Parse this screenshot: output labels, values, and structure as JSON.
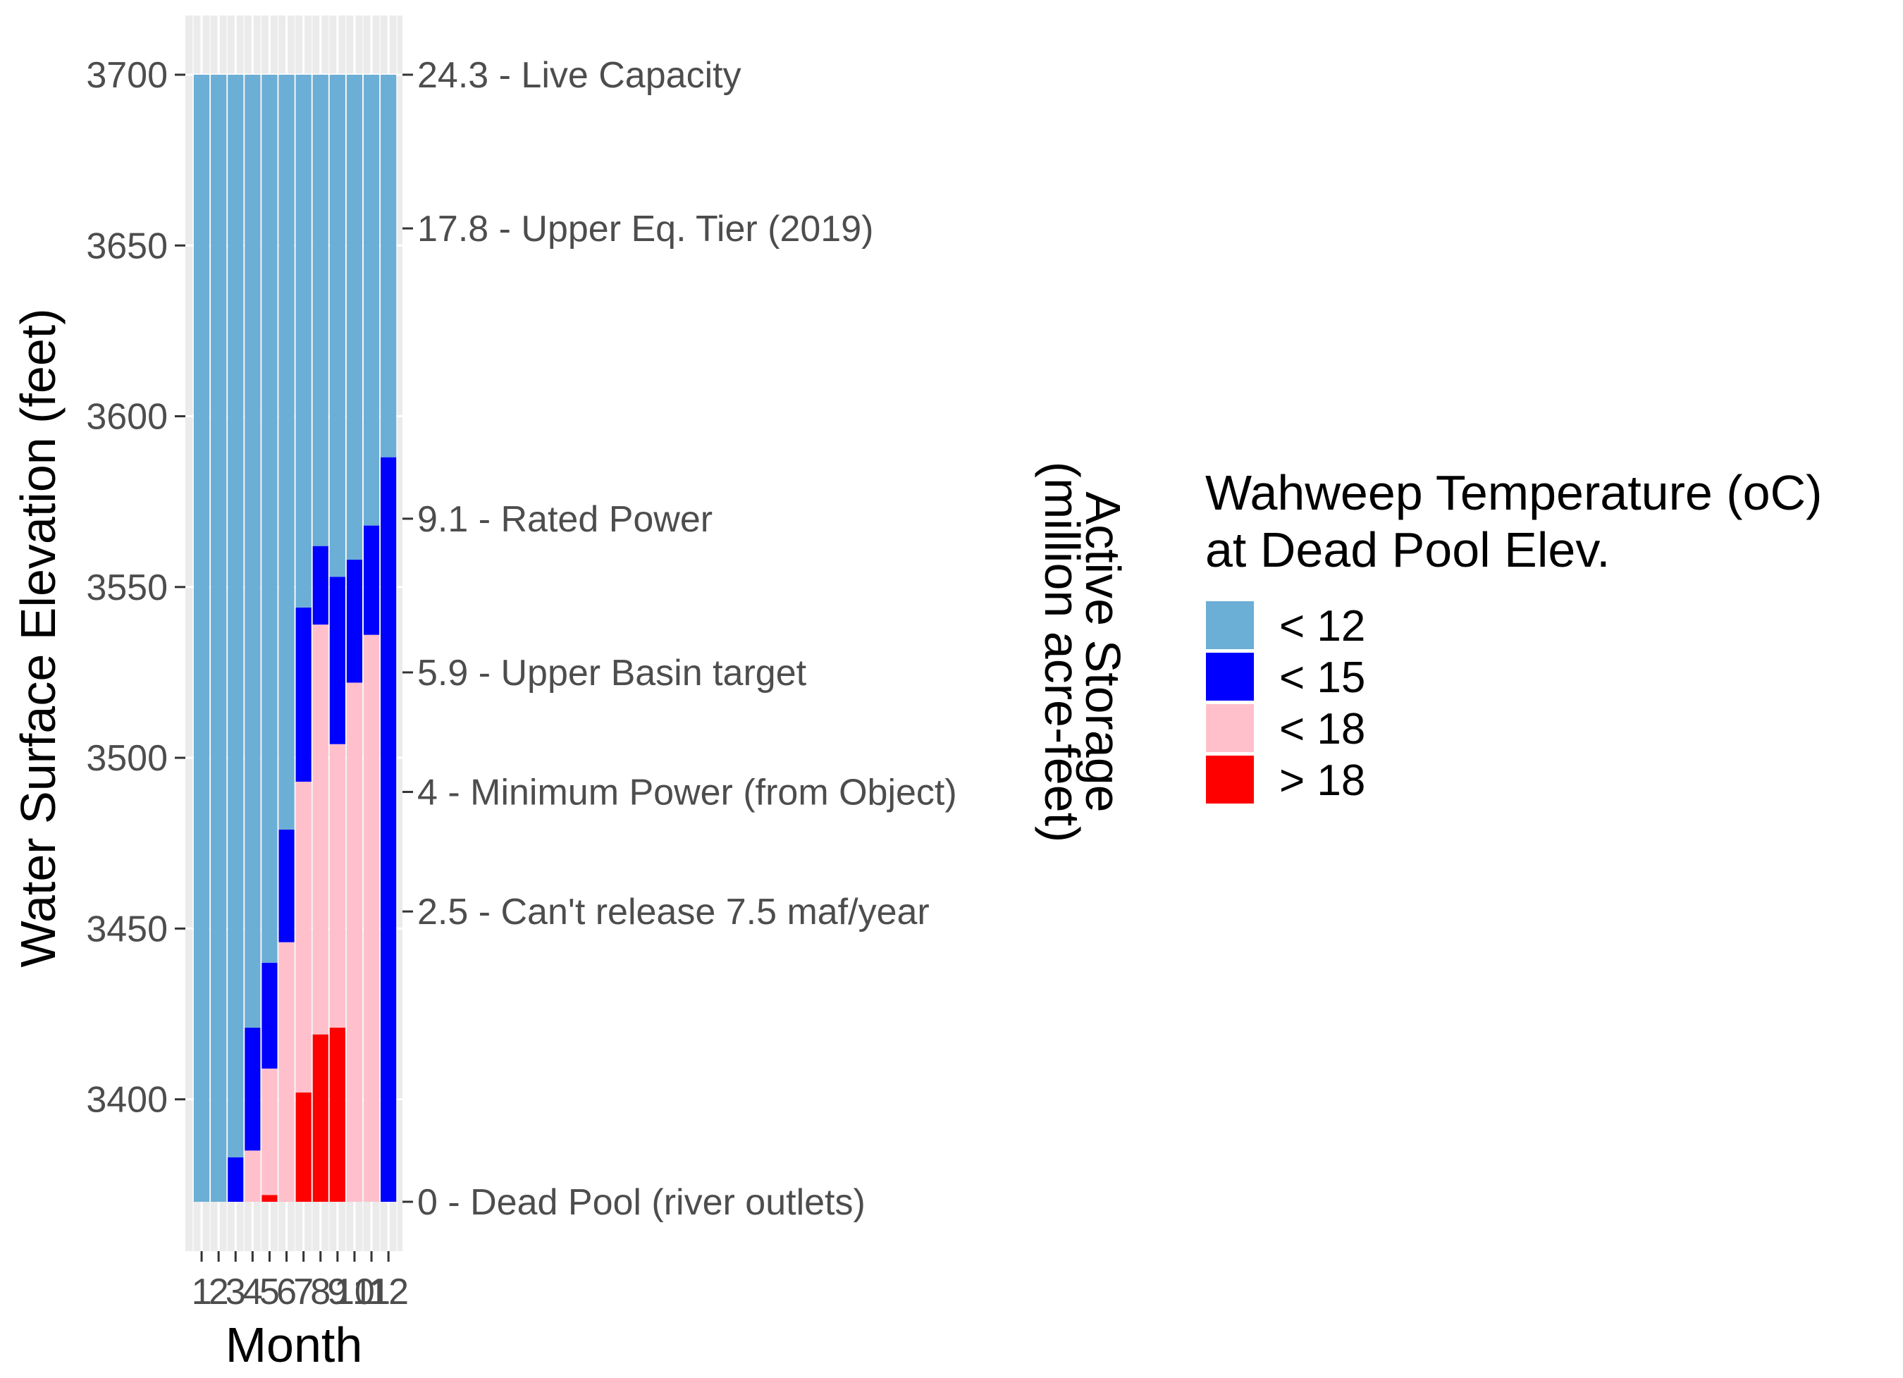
{
  "chart_data": {
    "type": "bar",
    "stacked": true,
    "xlabel": "Month",
    "ylabel": "Water Surface Elevation (feet)",
    "y2label_lines": [
      "Active Storage",
      "(million acre-feet)"
    ],
    "categories": [
      "1",
      "2",
      "3",
      "4",
      "5",
      "6",
      "7",
      "8",
      "9",
      "10",
      "11",
      "12"
    ],
    "ylim": [
      3370,
      3700
    ],
    "y_ticks": [
      3400,
      3450,
      3500,
      3550,
      3600,
      3650,
      3700
    ],
    "secondary_axis_ticks": [
      {
        "elevation": 3700,
        "label": "24.3 - Live Capacity"
      },
      {
        "elevation": 3655,
        "label": "17.8 - Upper Eq. Tier (2019)"
      },
      {
        "elevation": 3570,
        "label": "9.1 - Rated Power"
      },
      {
        "elevation": 3525,
        "label": "5.9 - Upper Basin target"
      },
      {
        "elevation": 3490,
        "label": "4 - Minimum Power (from Object)"
      },
      {
        "elevation": 3455,
        "label": "2.5 - Can't release 7.5 maf/year"
      },
      {
        "elevation": 3370,
        "label": "0 - Dead Pool (river outlets)"
      }
    ],
    "legend": {
      "title_lines": [
        "Wahweep Temperature (oC)",
        "at Dead Pool Elev."
      ],
      "position": "right",
      "entries": [
        {
          "label": "< 12",
          "color": "#6baed6"
        },
        {
          "label": "< 15",
          "color": "#0000ff"
        },
        {
          "label": "< 18",
          "color": "#ffc0cb"
        },
        {
          "label": "> 18",
          "color": "#ff0000"
        }
      ]
    },
    "colors": {
      "lt12": "#6baed6",
      "lt15": "#0000ff",
      "lt18": "#ffc0cb",
      "gt18": "#ff0000"
    },
    "monthly_thresholds": [
      {
        "month": "1",
        "gt18_below": null,
        "lt18_below": null,
        "lt15_below": null
      },
      {
        "month": "2",
        "gt18_below": null,
        "lt18_below": null,
        "lt15_below": null
      },
      {
        "month": "3",
        "gt18_below": null,
        "lt18_below": null,
        "lt15_below": 3383
      },
      {
        "month": "4",
        "gt18_below": null,
        "lt18_below": 3385,
        "lt15_below": 3421
      },
      {
        "month": "5",
        "gt18_below": 3372,
        "lt18_below": 3409,
        "lt15_below": 3440
      },
      {
        "month": "6",
        "gt18_below": null,
        "lt18_below": 3446,
        "lt15_below": 3479
      },
      {
        "month": "7",
        "gt18_below": 3402,
        "lt18_below": 3493,
        "lt15_below": 3544
      },
      {
        "month": "8",
        "gt18_below": 3419,
        "lt18_below": 3539,
        "lt15_below": 3562
      },
      {
        "month": "9",
        "gt18_below": 3421,
        "lt18_below": 3504,
        "lt15_below": 3553
      },
      {
        "month": "10",
        "gt18_below": null,
        "lt18_below": 3522,
        "lt15_below": 3558
      },
      {
        "month": "11",
        "gt18_below": null,
        "lt18_below": 3536,
        "lt15_below": 3568
      },
      {
        "month": "12",
        "gt18_below": null,
        "lt18_below": null,
        "lt15_below": 3588
      }
    ]
  }
}
